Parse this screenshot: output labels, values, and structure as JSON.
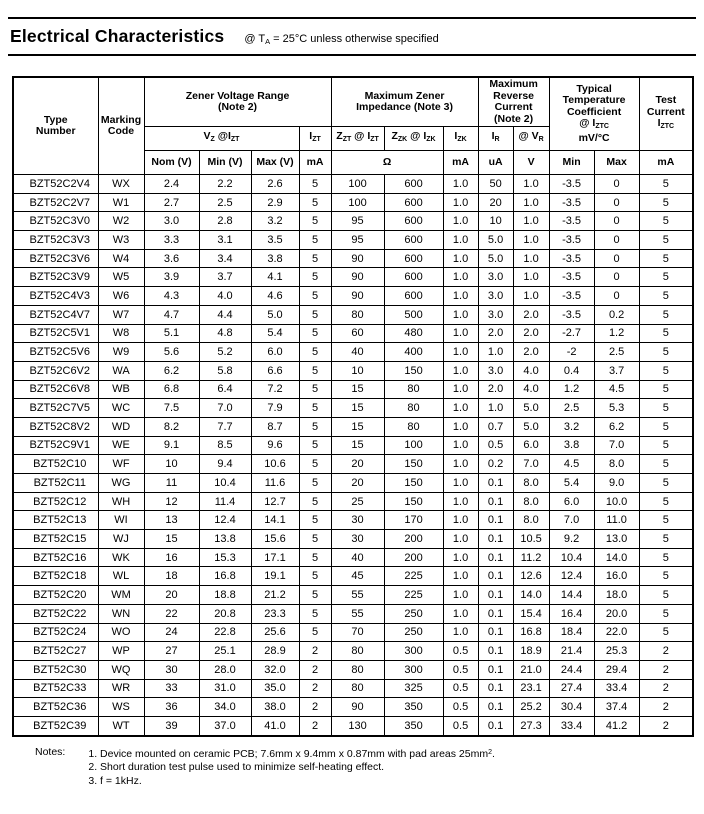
{
  "page": {
    "title": "Electrical Characteristics",
    "subtitle": {
      "pre": "@ T",
      "sub": "A",
      "post": " = 25°C unless otherwise specified"
    }
  },
  "table": {
    "groups": {
      "type_number": {
        "l1": "Type",
        "l2": "Number"
      },
      "marking_code": {
        "l1": "Marking",
        "l2": "Code"
      },
      "zener_voltage_range": {
        "l1": "Zener Voltage Range",
        "l2": "(Note 2)"
      },
      "max_zener_impedance": {
        "l1": "Maximum Zener",
        "l2": "Impedance (Note 3)"
      },
      "max_reverse_current": {
        "l1": "Maximum",
        "l2": "Reverse",
        "l3": "Current",
        "l4": "(Note 2)"
      },
      "typ_temp_coeff": {
        "l1": "Typical",
        "l2": "Temperature",
        "l3": "Coefficient",
        "l4_pre": "@ I",
        "l4_sub": "ZTC",
        "l5": "mV/°C"
      },
      "test_current": {
        "l1": "Test",
        "l2": "Current",
        "l3_pre": "I",
        "l3_sub": "ZTC"
      }
    },
    "symbols": {
      "vz": {
        "p1": "V",
        "s1": "Z",
        "p2": " @I",
        "s2": "ZT"
      },
      "izt": {
        "p1": "I",
        "s1": "ZT"
      },
      "zzt": {
        "p1": "Z",
        "s1": "ZT",
        "p2": " @ I",
        "s2": "ZT"
      },
      "zzk": {
        "p1": "Z",
        "s1": "ZK",
        "p2": " @ I",
        "s2": "ZK"
      },
      "izk": {
        "p1": "I",
        "s1": "ZK"
      },
      "ir": {
        "p1": "I",
        "s1": "R"
      },
      "vr": {
        "p1": "@ V",
        "s1": "R"
      }
    },
    "units": {
      "nom": "Nom (V)",
      "min": "Min (V)",
      "max": "Max (V)",
      "izt_ma": "mA",
      "ohm": "Ω",
      "izk_ma": "mA",
      "ir_ua": "uA",
      "vr_v": "V",
      "tc_min": "Min",
      "tc_max": "Max",
      "iztc_ma": "mA"
    },
    "rows": [
      [
        "BZT52C2V4",
        "WX",
        "2.4",
        "2.2",
        "2.6",
        "5",
        "100",
        "600",
        "1.0",
        "50",
        "1.0",
        "-3.5",
        "0",
        "5"
      ],
      [
        "BZT52C2V7",
        "W1",
        "2.7",
        "2.5",
        "2.9",
        "5",
        "100",
        "600",
        "1.0",
        "20",
        "1.0",
        "-3.5",
        "0",
        "5"
      ],
      [
        "BZT52C3V0",
        "W2",
        "3.0",
        "2.8",
        "3.2",
        "5",
        "95",
        "600",
        "1.0",
        "10",
        "1.0",
        "-3.5",
        "0",
        "5"
      ],
      [
        "BZT52C3V3",
        "W3",
        "3.3",
        "3.1",
        "3.5",
        "5",
        "95",
        "600",
        "1.0",
        "5.0",
        "1.0",
        "-3.5",
        "0",
        "5"
      ],
      [
        "BZT52C3V6",
        "W4",
        "3.6",
        "3.4",
        "3.8",
        "5",
        "90",
        "600",
        "1.0",
        "5.0",
        "1.0",
        "-3.5",
        "0",
        "5"
      ],
      [
        "BZT52C3V9",
        "W5",
        "3.9",
        "3.7",
        "4.1",
        "5",
        "90",
        "600",
        "1.0",
        "3.0",
        "1.0",
        "-3.5",
        "0",
        "5"
      ],
      [
        "BZT52C4V3",
        "W6",
        "4.3",
        "4.0",
        "4.6",
        "5",
        "90",
        "600",
        "1.0",
        "3.0",
        "1.0",
        "-3.5",
        "0",
        "5"
      ],
      [
        "BZT52C4V7",
        "W7",
        "4.7",
        "4.4",
        "5.0",
        "5",
        "80",
        "500",
        "1.0",
        "3.0",
        "2.0",
        "-3.5",
        "0.2",
        "5"
      ],
      [
        "BZT52C5V1",
        "W8",
        "5.1",
        "4.8",
        "5.4",
        "5",
        "60",
        "480",
        "1.0",
        "2.0",
        "2.0",
        "-2.7",
        "1.2",
        "5"
      ],
      [
        "BZT52C5V6",
        "W9",
        "5.6",
        "5.2",
        "6.0",
        "5",
        "40",
        "400",
        "1.0",
        "1.0",
        "2.0",
        "-2",
        "2.5",
        "5"
      ],
      [
        "BZT52C6V2",
        "WA",
        "6.2",
        "5.8",
        "6.6",
        "5",
        "10",
        "150",
        "1.0",
        "3.0",
        "4.0",
        "0.4",
        "3.7",
        "5"
      ],
      [
        "BZT52C6V8",
        "WB",
        "6.8",
        "6.4",
        "7.2",
        "5",
        "15",
        "80",
        "1.0",
        "2.0",
        "4.0",
        "1.2",
        "4.5",
        "5"
      ],
      [
        "BZT52C7V5",
        "WC",
        "7.5",
        "7.0",
        "7.9",
        "5",
        "15",
        "80",
        "1.0",
        "1.0",
        "5.0",
        "2.5",
        "5.3",
        "5"
      ],
      [
        "BZT52C8V2",
        "WD",
        "8.2",
        "7.7",
        "8.7",
        "5",
        "15",
        "80",
        "1.0",
        "0.7",
        "5.0",
        "3.2",
        "6.2",
        "5"
      ],
      [
        "BZT52C9V1",
        "WE",
        "9.1",
        "8.5",
        "9.6",
        "5",
        "15",
        "100",
        "1.0",
        "0.5",
        "6.0",
        "3.8",
        "7.0",
        "5"
      ],
      [
        "BZT52C10",
        "WF",
        "10",
        "9.4",
        "10.6",
        "5",
        "20",
        "150",
        "1.0",
        "0.2",
        "7.0",
        "4.5",
        "8.0",
        "5"
      ],
      [
        "BZT52C11",
        "WG",
        "11",
        "10.4",
        "11.6",
        "5",
        "20",
        "150",
        "1.0",
        "0.1",
        "8.0",
        "5.4",
        "9.0",
        "5"
      ],
      [
        "BZT52C12",
        "WH",
        "12",
        "11.4",
        "12.7",
        "5",
        "25",
        "150",
        "1.0",
        "0.1",
        "8.0",
        "6.0",
        "10.0",
        "5"
      ],
      [
        "BZT52C13",
        "WI",
        "13",
        "12.4",
        "14.1",
        "5",
        "30",
        "170",
        "1.0",
        "0.1",
        "8.0",
        "7.0",
        "11.0",
        "5"
      ],
      [
        "BZT52C15",
        "WJ",
        "15",
        "13.8",
        "15.6",
        "5",
        "30",
        "200",
        "1.0",
        "0.1",
        "10.5",
        "9.2",
        "13.0",
        "5"
      ],
      [
        "BZT52C16",
        "WK",
        "16",
        "15.3",
        "17.1",
        "5",
        "40",
        "200",
        "1.0",
        "0.1",
        "11.2",
        "10.4",
        "14.0",
        "5"
      ],
      [
        "BZT52C18",
        "WL",
        "18",
        "16.8",
        "19.1",
        "5",
        "45",
        "225",
        "1.0",
        "0.1",
        "12.6",
        "12.4",
        "16.0",
        "5"
      ],
      [
        "BZT52C20",
        "WM",
        "20",
        "18.8",
        "21.2",
        "5",
        "55",
        "225",
        "1.0",
        "0.1",
        "14.0",
        "14.4",
        "18.0",
        "5"
      ],
      [
        "BZT52C22",
        "WN",
        "22",
        "20.8",
        "23.3",
        "5",
        "55",
        "250",
        "1.0",
        "0.1",
        "15.4",
        "16.4",
        "20.0",
        "5"
      ],
      [
        "BZT52C24",
        "WO",
        "24",
        "22.8",
        "25.6",
        "5",
        "70",
        "250",
        "1.0",
        "0.1",
        "16.8",
        "18.4",
        "22.0",
        "5"
      ],
      [
        "BZT52C27",
        "WP",
        "27",
        "25.1",
        "28.9",
        "2",
        "80",
        "300",
        "0.5",
        "0.1",
        "18.9",
        "21.4",
        "25.3",
        "2"
      ],
      [
        "BZT52C30",
        "WQ",
        "30",
        "28.0",
        "32.0",
        "2",
        "80",
        "300",
        "0.5",
        "0.1",
        "21.0",
        "24.4",
        "29.4",
        "2"
      ],
      [
        "BZT52C33",
        "WR",
        "33",
        "31.0",
        "35.0",
        "2",
        "80",
        "325",
        "0.5",
        "0.1",
        "23.1",
        "27.4",
        "33.4",
        "2"
      ],
      [
        "BZT52C36",
        "WS",
        "36",
        "34.0",
        "38.0",
        "2",
        "90",
        "350",
        "0.5",
        "0.1",
        "25.2",
        "30.4",
        "37.4",
        "2"
      ],
      [
        "BZT52C39",
        "WT",
        "39",
        "37.0",
        "41.0",
        "2",
        "130",
        "350",
        "0.5",
        "0.1",
        "27.3",
        "33.4",
        "41.2",
        "2"
      ]
    ]
  },
  "notes": {
    "label": "Notes:",
    "items": [
      {
        "text": "1. Device mounted on ceramic PCB; 7.6mm x 9.4mm x 0.87mm with pad areas 25mm",
        "sup": "2",
        "post": "."
      },
      {
        "text": "2. Short duration test pulse used to minimize self-heating effect."
      },
      {
        "text": "3. f = 1kHz."
      }
    ]
  }
}
